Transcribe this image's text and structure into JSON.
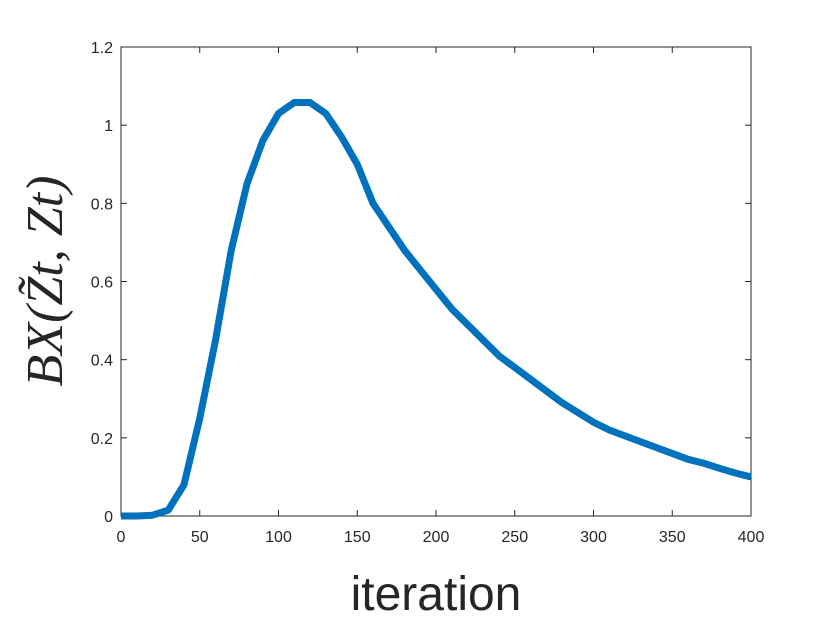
{
  "chart_data": {
    "type": "line",
    "xlabel": "iteration",
    "ylabel": "BX(Z̃t, Zt)",
    "x": [
      0,
      10,
      20,
      30,
      40,
      50,
      60,
      70,
      80,
      90,
      100,
      110,
      120,
      130,
      140,
      150,
      160,
      170,
      180,
      190,
      200,
      210,
      220,
      230,
      240,
      250,
      260,
      270,
      280,
      290,
      300,
      310,
      320,
      330,
      340,
      350,
      360,
      370,
      380,
      390,
      400
    ],
    "series": [
      {
        "color": "#0072bd",
        "values": [
          0,
          0,
          0.002,
          0.015,
          0.08,
          0.25,
          0.45,
          0.68,
          0.85,
          0.96,
          1.03,
          1.058,
          1.058,
          1.03,
          0.97,
          0.9,
          0.8,
          0.74,
          0.68,
          0.63,
          0.58,
          0.53,
          0.49,
          0.45,
          0.41,
          0.38,
          0.35,
          0.32,
          0.29,
          0.265,
          0.24,
          0.22,
          0.205,
          0.19,
          0.175,
          0.16,
          0.145,
          0.135,
          0.122,
          0.11,
          0.1
        ]
      }
    ],
    "xlim": [
      0,
      400
    ],
    "xticks": [
      0,
      50,
      100,
      150,
      200,
      250,
      300,
      350,
      400
    ],
    "ylim": [
      0,
      1.2
    ],
    "yticks": [
      0,
      0.2,
      0.4,
      0.6,
      0.8,
      1,
      1.2
    ]
  }
}
